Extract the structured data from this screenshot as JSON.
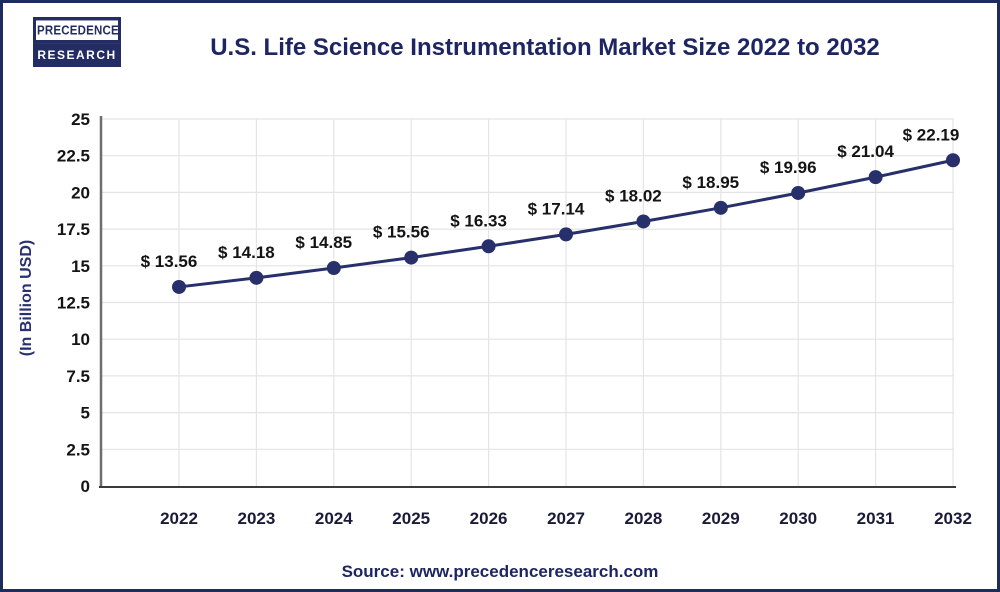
{
  "header": {
    "logo": {
      "line1": "PRECEDENCE",
      "line2": "RESEARCH"
    },
    "title": "U.S. Life Science Instrumentation Market Size 2022 to 2032"
  },
  "chart_data": {
    "type": "line",
    "title": "U.S. Life Science Instrumentation Market Size 2022 to 2032",
    "categories": [
      "2022",
      "2023",
      "2024",
      "2025",
      "2026",
      "2027",
      "2028",
      "2029",
      "2030",
      "2031",
      "2032"
    ],
    "values": [
      13.56,
      14.18,
      14.85,
      15.56,
      16.33,
      17.14,
      18.02,
      18.95,
      19.96,
      21.04,
      22.19
    ],
    "point_labels": [
      "$ 13.56",
      "$ 14.18",
      "$ 14.85",
      "$ 15.56",
      "$ 16.33",
      "$ 17.14",
      "$ 18.02",
      "$ 18.95",
      "$ 19.96",
      "$ 21.04",
      "$ 22.19"
    ],
    "xlabel": "",
    "ylabel": "(In Billion USD)",
    "ylim": [
      0,
      25
    ],
    "ytick_step": 2.5,
    "ytick_labels": [
      "0",
      "2.5",
      "5",
      "7.5",
      "10",
      "12.5",
      "15",
      "17.5",
      "20",
      "22.5",
      "25"
    ],
    "grid": true,
    "legend_position": "none",
    "colors": {
      "series": "#27306a",
      "point_label": "#141414",
      "tick_label": "#141414",
      "year_label": "#1a1b38",
      "grid_line": "#e4e4e4",
      "y_axis_line": "#6e6e6e",
      "x_axis_line": "#3a3a3a",
      "ylabel_text": "#283071"
    }
  },
  "footer": {
    "source": "Source: www.precedenceresearch.com"
  }
}
